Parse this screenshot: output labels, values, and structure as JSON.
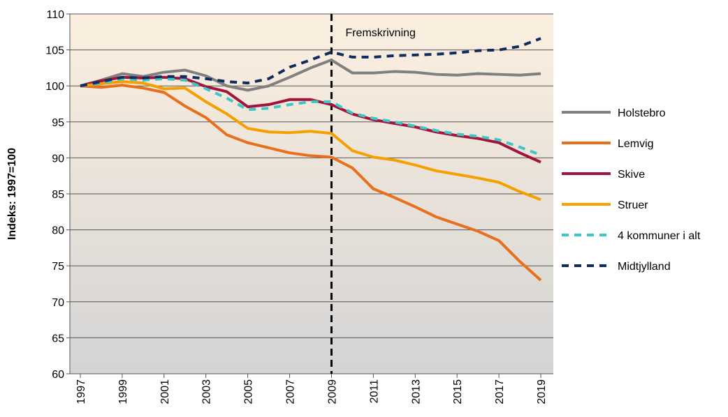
{
  "chart_data": {
    "type": "line",
    "ylabel": "Indeks: 1997=100",
    "annotation": {
      "text": "Fremskrivning",
      "x": 2009
    },
    "x": [
      1997,
      1998,
      1999,
      2000,
      2001,
      2002,
      2003,
      2004,
      2005,
      2006,
      2007,
      2008,
      2009,
      2010,
      2011,
      2012,
      2013,
      2014,
      2015,
      2016,
      2017,
      2018,
      2019
    ],
    "xlim": [
      1996.5,
      2019.6
    ],
    "xticks": [
      1997,
      1999,
      2001,
      2003,
      2005,
      2007,
      2009,
      2011,
      2013,
      2015,
      2017,
      2019
    ],
    "ylim": [
      60,
      110
    ],
    "yticks": [
      60,
      65,
      70,
      75,
      80,
      85,
      90,
      95,
      100,
      105,
      110
    ],
    "grid": true,
    "series": [
      {
        "name": "Holstebro",
        "color": "#808080",
        "dashed": false,
        "values": [
          100,
          100.8,
          101.7,
          101.3,
          101.9,
          102.2,
          101.4,
          100.0,
          99.4,
          100.0,
          101.2,
          102.5,
          103.6,
          101.8,
          101.8,
          102.0,
          101.9,
          101.6,
          101.5,
          101.7,
          101.6,
          101.5,
          101.7
        ]
      },
      {
        "name": "Lemvig",
        "color": "#e8701c",
        "dashed": false,
        "values": [
          100,
          99.8,
          100.1,
          99.7,
          99.1,
          97.2,
          95.6,
          93.2,
          92.1,
          91.4,
          90.7,
          90.3,
          90.1,
          88.6,
          85.7,
          84.5,
          83.2,
          81.8,
          80.8,
          79.8,
          78.5,
          75.6,
          73.0
        ]
      },
      {
        "name": "Skive",
        "color": "#a3143c",
        "dashed": false,
        "values": [
          100,
          100.7,
          101.2,
          101.1,
          101.2,
          101.0,
          99.9,
          99.2,
          97.1,
          97.4,
          98.1,
          98.1,
          97.4,
          96.1,
          95.3,
          94.8,
          94.3,
          93.6,
          93.1,
          92.7,
          92.1,
          90.7,
          89.4
        ]
      },
      {
        "name": "Struer",
        "color": "#f5a000",
        "dashed": false,
        "values": [
          100,
          100.3,
          100.6,
          100.4,
          99.6,
          99.7,
          97.8,
          96.1,
          94.1,
          93.6,
          93.5,
          93.7,
          93.4,
          91.0,
          90.1,
          89.7,
          89.0,
          88.2,
          87.7,
          87.2,
          86.6,
          85.3,
          84.2
        ]
      },
      {
        "name": "4 kommuner i alt",
        "color": "#3fc6c6",
        "dashed": true,
        "values": [
          100,
          100.4,
          101.0,
          100.8,
          101.0,
          100.8,
          99.6,
          98.3,
          96.7,
          96.9,
          97.4,
          97.8,
          97.8,
          96.2,
          95.5,
          95.0,
          94.4,
          93.8,
          93.3,
          93.0,
          92.5,
          91.5,
          90.4
        ]
      },
      {
        "name": "Midtjylland",
        "color": "#0e2d5e",
        "dashed": true,
        "values": [
          100,
          100.6,
          101.2,
          101.1,
          101.3,
          101.3,
          101.0,
          100.6,
          100.4,
          101.0,
          102.6,
          103.6,
          104.7,
          104.0,
          104.0,
          104.2,
          104.3,
          104.4,
          104.6,
          104.9,
          105.0,
          105.5,
          106.6
        ]
      }
    ]
  }
}
